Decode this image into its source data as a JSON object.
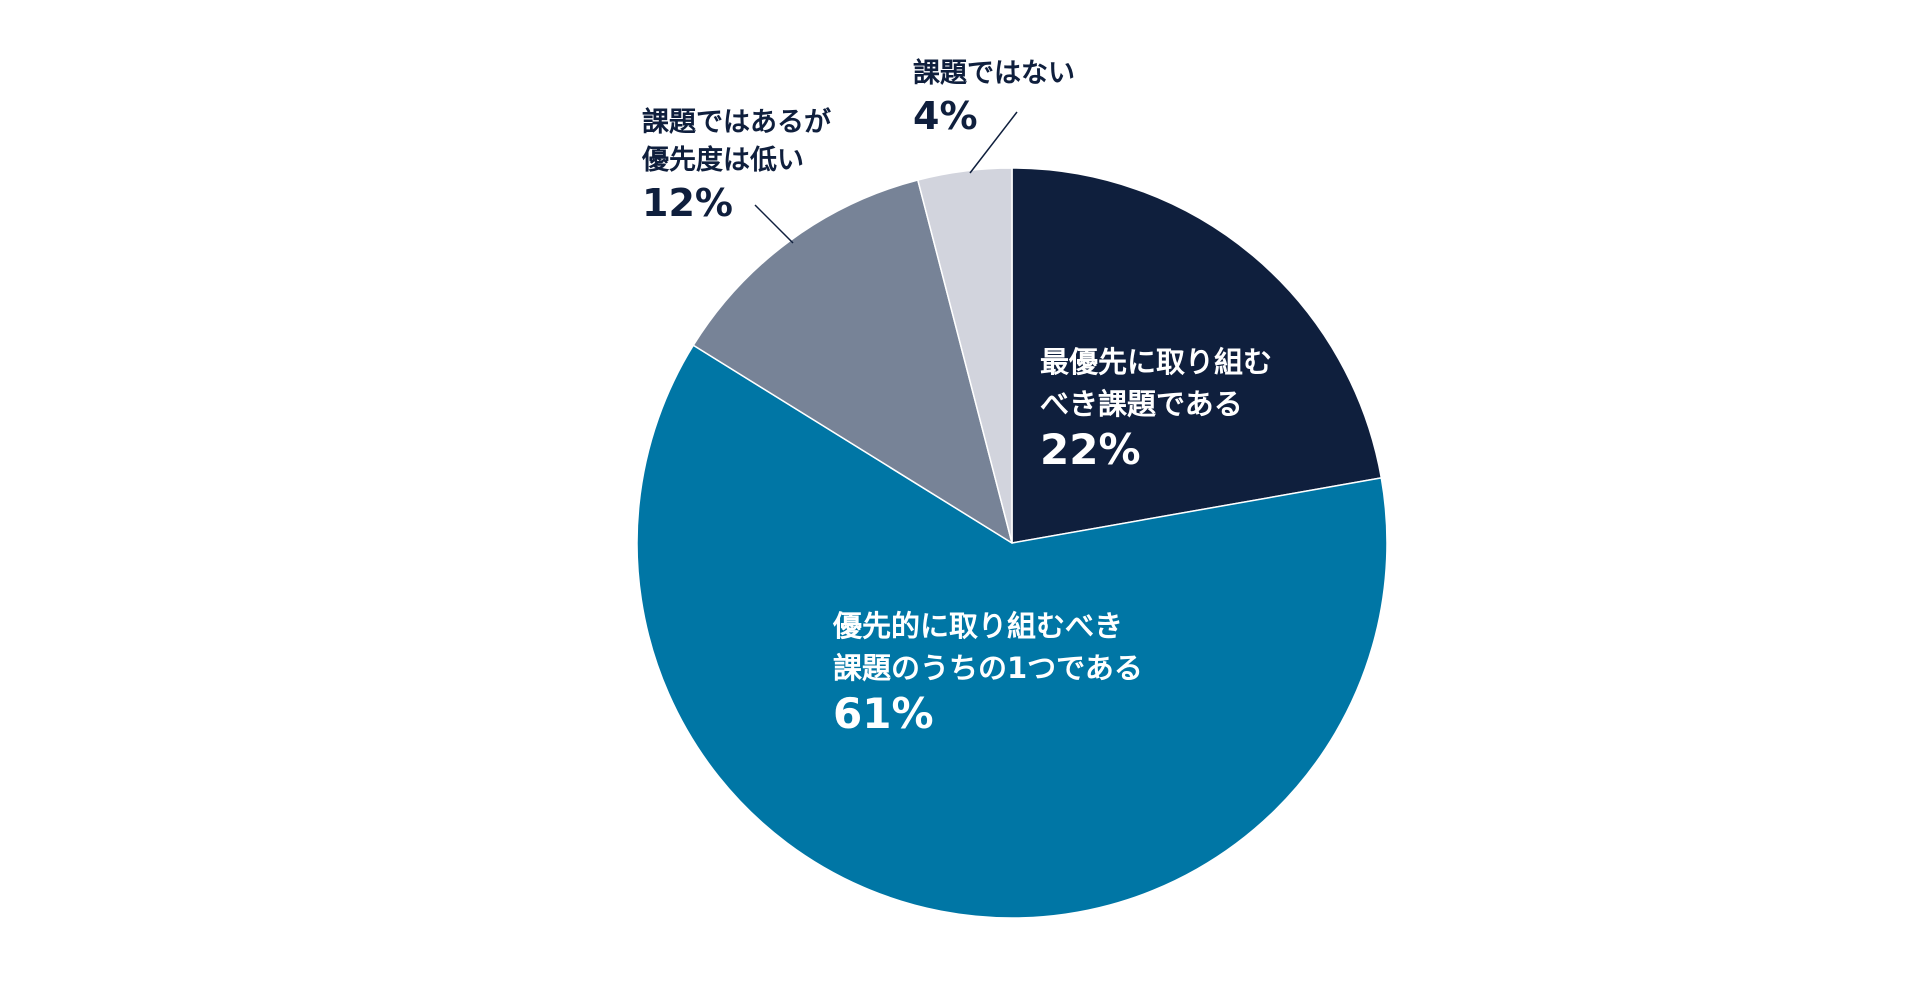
{
  "chart_data": {
    "type": "pie",
    "title": "",
    "start_angle_deg": 0,
    "direction": "clockwise",
    "slices": [
      {
        "label_lines": [
          "最優先に取り組む",
          "べき課題である"
        ],
        "value": 22,
        "value_label": "22%",
        "color": "#0f1f3d",
        "text_color": "#ffffff",
        "label_placement": "inside"
      },
      {
        "label_lines": [
          "優先的に取り組むべき",
          "課題のうちの1つである"
        ],
        "value": 61,
        "value_label": "61%",
        "color": "#0076a5",
        "text_color": "#ffffff",
        "label_placement": "inside"
      },
      {
        "label_lines": [
          "課題ではあるが",
          "優先度は低い"
        ],
        "value": 12,
        "value_label": "12%",
        "color": "#778397",
        "text_color": "#0f1f3d",
        "label_placement": "outside-left"
      },
      {
        "label_lines": [
          "課題ではない"
        ],
        "value": 4,
        "value_label": "4%",
        "color": "#d2d4dd",
        "text_color": "#0f1f3d",
        "label_placement": "outside-top"
      }
    ]
  }
}
